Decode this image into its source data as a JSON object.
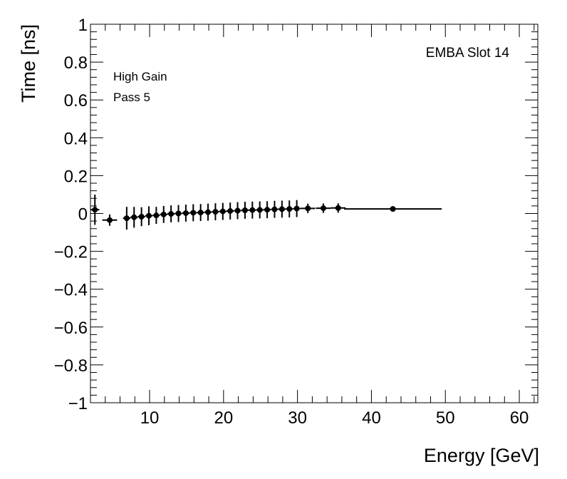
{
  "chart_data": {
    "type": "scatter",
    "xlabel": "Energy [GeV]",
    "ylabel": "Time [ns]",
    "xlim": [
      2,
      62.5
    ],
    "ylim": [
      -1,
      1
    ],
    "x_tick_labels": [
      "10",
      "20",
      "30",
      "40",
      "50",
      "60"
    ],
    "y_tick_labels": [
      "−1",
      "−0.8",
      "−0.6",
      "−0.4",
      "−0.2",
      "0",
      "0.2",
      "0.4",
      "0.6",
      "0.8",
      "1"
    ],
    "annotations": {
      "label_top_right": "EMBA Slot 14",
      "gain": "High Gain",
      "pass": "Pass 5"
    },
    "grid": false,
    "legend": "none",
    "marker_color": "#000000",
    "points": [
      {
        "x": 2.6,
        "y": 0.02,
        "xerr": 0.6,
        "yerr": 0.08
      },
      {
        "x": 4.6,
        "y": -0.035,
        "xerr": 1.0,
        "yerr": 0.03
      },
      {
        "x": 6.9,
        "y": -0.025,
        "xerr": 0.5,
        "yerr": 0.06
      },
      {
        "x": 7.9,
        "y": -0.02,
        "xerr": 0.5,
        "yerr": 0.055
      },
      {
        "x": 8.9,
        "y": -0.017,
        "xerr": 0.5,
        "yerr": 0.05
      },
      {
        "x": 9.9,
        "y": -0.012,
        "xerr": 0.5,
        "yerr": 0.05
      },
      {
        "x": 10.9,
        "y": -0.01,
        "xerr": 0.5,
        "yerr": 0.045
      },
      {
        "x": 11.9,
        "y": -0.005,
        "xerr": 0.5,
        "yerr": 0.045
      },
      {
        "x": 12.9,
        "y": -0.002,
        "xerr": 0.5,
        "yerr": 0.045
      },
      {
        "x": 13.9,
        "y": 0.0,
        "xerr": 0.5,
        "yerr": 0.045
      },
      {
        "x": 14.9,
        "y": 0.002,
        "xerr": 0.5,
        "yerr": 0.045
      },
      {
        "x": 15.9,
        "y": 0.004,
        "xerr": 0.5,
        "yerr": 0.045
      },
      {
        "x": 16.9,
        "y": 0.005,
        "xerr": 0.5,
        "yerr": 0.045
      },
      {
        "x": 17.9,
        "y": 0.007,
        "xerr": 0.5,
        "yerr": 0.045
      },
      {
        "x": 18.9,
        "y": 0.009,
        "xerr": 0.5,
        "yerr": 0.045
      },
      {
        "x": 19.9,
        "y": 0.011,
        "xerr": 0.5,
        "yerr": 0.045
      },
      {
        "x": 20.9,
        "y": 0.013,
        "xerr": 0.5,
        "yerr": 0.045
      },
      {
        "x": 21.9,
        "y": 0.015,
        "xerr": 0.5,
        "yerr": 0.045
      },
      {
        "x": 22.9,
        "y": 0.017,
        "xerr": 0.5,
        "yerr": 0.045
      },
      {
        "x": 23.9,
        "y": 0.018,
        "xerr": 0.5,
        "yerr": 0.045
      },
      {
        "x": 24.9,
        "y": 0.019,
        "xerr": 0.5,
        "yerr": 0.045
      },
      {
        "x": 25.9,
        "y": 0.02,
        "xerr": 0.5,
        "yerr": 0.045
      },
      {
        "x": 26.9,
        "y": 0.022,
        "xerr": 0.5,
        "yerr": 0.045
      },
      {
        "x": 27.9,
        "y": 0.023,
        "xerr": 0.5,
        "yerr": 0.045
      },
      {
        "x": 28.9,
        "y": 0.024,
        "xerr": 0.5,
        "yerr": 0.045
      },
      {
        "x": 29.9,
        "y": 0.026,
        "xerr": 0.5,
        "yerr": 0.045
      },
      {
        "x": 31.4,
        "y": 0.027,
        "xerr": 1.0,
        "yerr": 0.025
      },
      {
        "x": 33.5,
        "y": 0.028,
        "xerr": 1.0,
        "yerr": 0.025
      },
      {
        "x": 35.5,
        "y": 0.029,
        "xerr": 1.0,
        "yerr": 0.025
      },
      {
        "x": 42.9,
        "y": 0.024,
        "xerr": 6.6,
        "yerr": 0.01
      }
    ]
  }
}
